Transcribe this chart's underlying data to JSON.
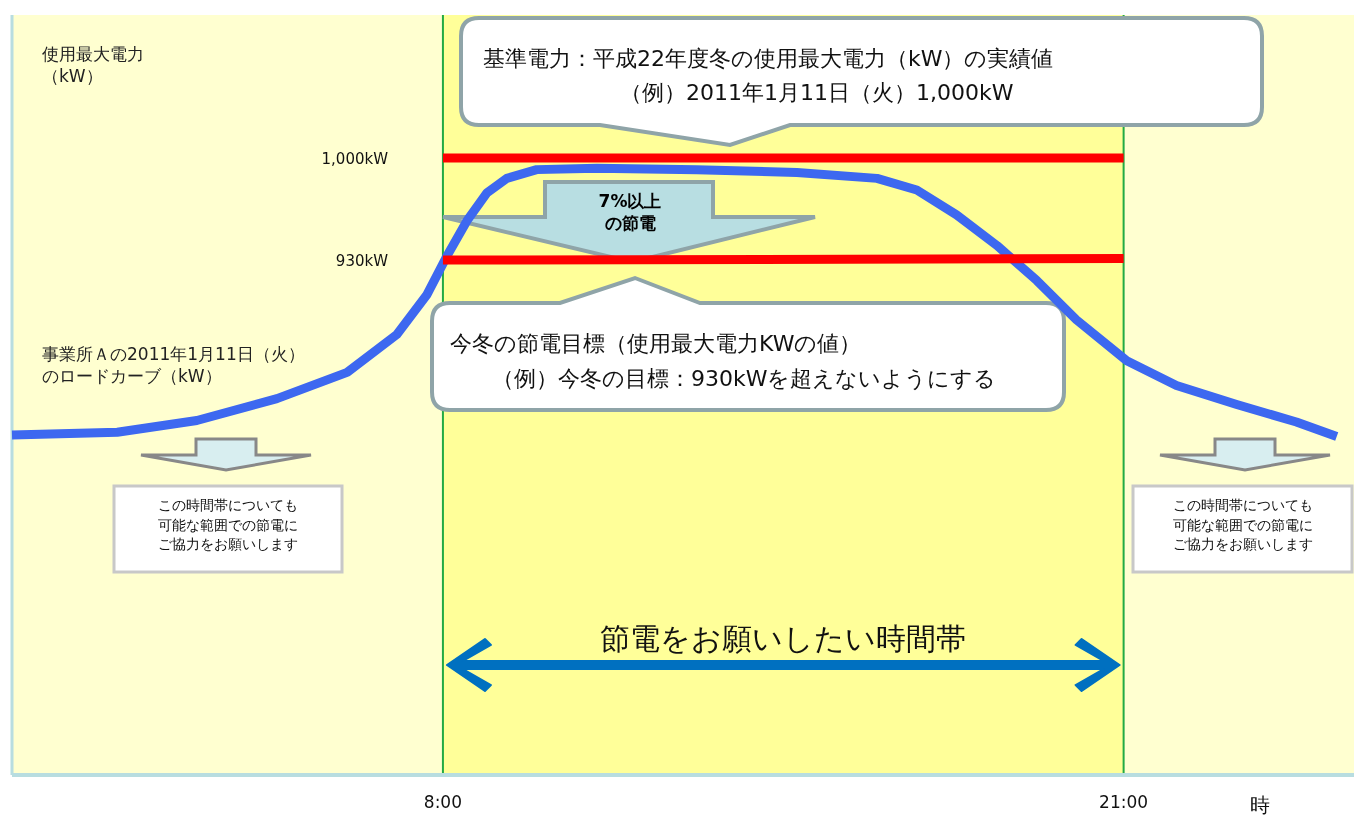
{
  "chart_data": {
    "type": "line",
    "ylabel": "使用最大電力（kW）",
    "xlabel": "時",
    "xlim": [
      -0.23,
      25.4
    ],
    "ylim": [
      577,
      1098
    ],
    "xticks": [
      {
        "value": 8,
        "label": "8:00"
      },
      {
        "value": 21,
        "label": "21:00"
      }
    ],
    "yticks": [
      {
        "value": 930,
        "label": "930kW"
      },
      {
        "value": 1000,
        "label": "1,000kW"
      }
    ],
    "series": [
      {
        "name": "事業所Ａの2011年1月11日（火）のロードカーブ（kW）",
        "color": "#3d68f0",
        "x": [
          -0.23,
          1.78,
          3.3,
          4.83,
          6.17,
          7.12,
          7.69,
          8.08,
          8.46,
          8.84,
          9.22,
          9.79,
          10.94,
          12.85,
          14.76,
          16.29,
          17.05,
          17.81,
          18.58,
          19.34,
          20.1,
          21.06,
          22.01,
          23.16,
          24.3,
          25.07
        ],
        "values": [
          810,
          812,
          820,
          835,
          853,
          879,
          906,
          933,
          957,
          976,
          986,
          992,
          993,
          992,
          990,
          986,
          978,
          961,
          940,
          916,
          889,
          861,
          844,
          831,
          819,
          809
        ]
      },
      {
        "color": "#ff0000",
        "x": [
          8,
          21
        ],
        "values": [
          1000,
          1000
        ]
      },
      {
        "color": "#ff0000",
        "x": [
          8,
          21
        ],
        "values": [
          930,
          931
        ]
      }
    ],
    "bands": [
      {
        "axis": "x",
        "from": 8,
        "to": 21,
        "label": "節電をお願いしたい時間帯",
        "color": "#ffff99"
      }
    ],
    "annotations": [
      "基準電力：平成22年度冬の使用最大電力（kW）の実績値（例）2011年1月11日（火）1,000kW",
      "7%以上の節電",
      "今冬の節電目標（使用最大電力KWの値）（例）今冬の目標：930kWを超えないようにする",
      "この時間帯についても可能な範囲での節電にご協力をお願いします",
      "この時間帯についても可能な範囲での節電にご協力をお願いします"
    ]
  }
}
